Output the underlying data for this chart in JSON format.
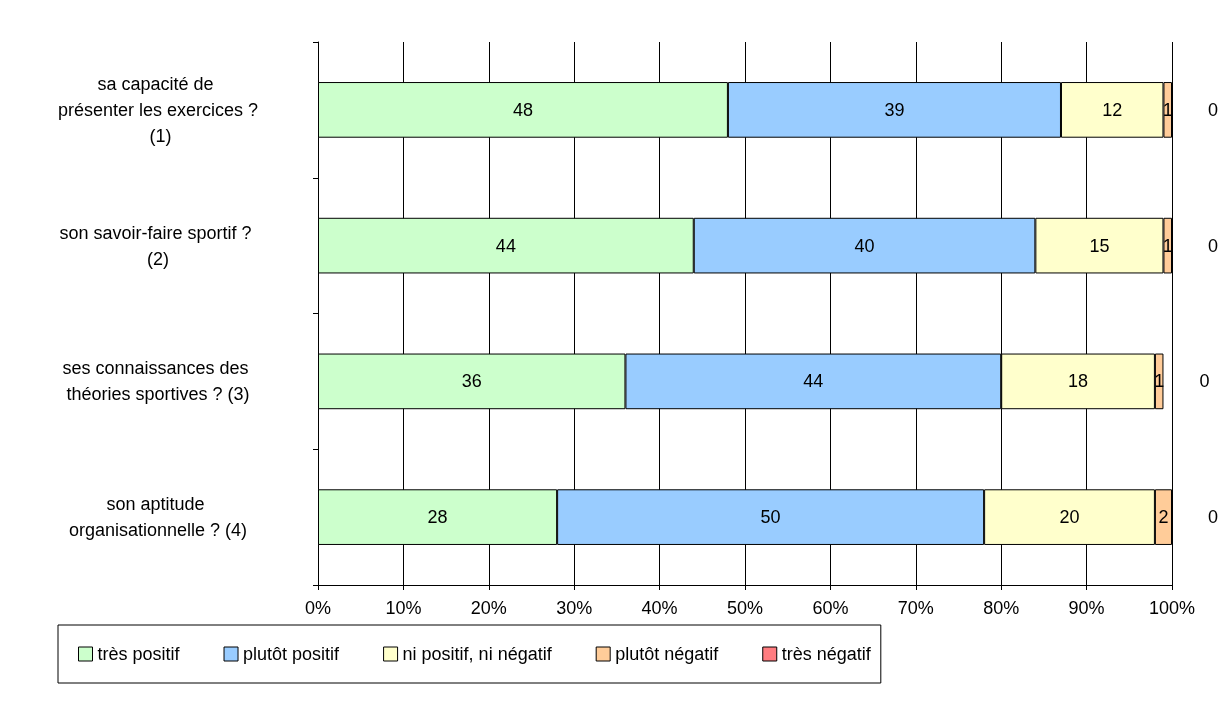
{
  "chart_data": {
    "type": "bar",
    "orientation": "horizontal",
    "stacked": true,
    "data_labels": true,
    "grid": "x",
    "legend": "bottom",
    "categories": [
      "sa capacité de présenter les exercices ? (1)",
      "son savoir-faire sportif ? (2)",
      "ses connaissances des théories sportives ? (3)",
      "son aptitude organisationnelle ? (4)"
    ],
    "series": [
      {
        "name": "très positif",
        "color": "#ccffcc",
        "values": [
          48,
          44,
          36,
          28
        ]
      },
      {
        "name": "plutôt positif",
        "color": "#99ccff",
        "values": [
          39,
          40,
          44,
          50
        ]
      },
      {
        "name": "ni positif, ni négatif",
        "color": "#ffffcc",
        "values": [
          12,
          15,
          18,
          20
        ]
      },
      {
        "name": "plutôt négatif",
        "color": "#ffcc99",
        "values": [
          1,
          1,
          1,
          2
        ]
      },
      {
        "name": "très négatif",
        "color": "#ff7c80",
        "values": [
          0,
          0,
          0,
          0
        ]
      }
    ],
    "xlim": [
      0,
      100
    ],
    "xticks": [
      {
        "value": 0,
        "label": "0%"
      },
      {
        "value": 10,
        "label": "10%"
      },
      {
        "value": 20,
        "label": "20%"
      },
      {
        "value": 30,
        "label": "30%"
      },
      {
        "value": 40,
        "label": "40%"
      },
      {
        "value": 50,
        "label": "50%"
      },
      {
        "value": 60,
        "label": "60%"
      },
      {
        "value": 70,
        "label": "70%"
      },
      {
        "value": 80,
        "label": "80%"
      },
      {
        "value": 90,
        "label": "90%"
      },
      {
        "value": 100,
        "label": "100%"
      }
    ]
  }
}
